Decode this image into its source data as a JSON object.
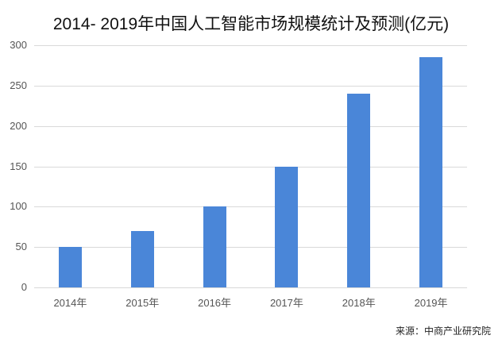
{
  "chart_data": {
    "type": "bar",
    "title": "2014- 2019年中国人工智能市场规模统计及预测(亿元)",
    "categories": [
      "2014年",
      "2015年",
      "2016年",
      "2017年",
      "2018年",
      "2019年"
    ],
    "values": [
      50,
      70,
      100,
      150,
      240,
      285
    ],
    "xlabel": "",
    "ylabel": "",
    "ylim": [
      0,
      300
    ],
    "yticks": [
      "0",
      "50",
      "100",
      "150",
      "200",
      "250",
      "300"
    ],
    "grid": true,
    "legend": null,
    "bar_color": "#4a86d8",
    "source": "来源：中商产业研究院"
  }
}
